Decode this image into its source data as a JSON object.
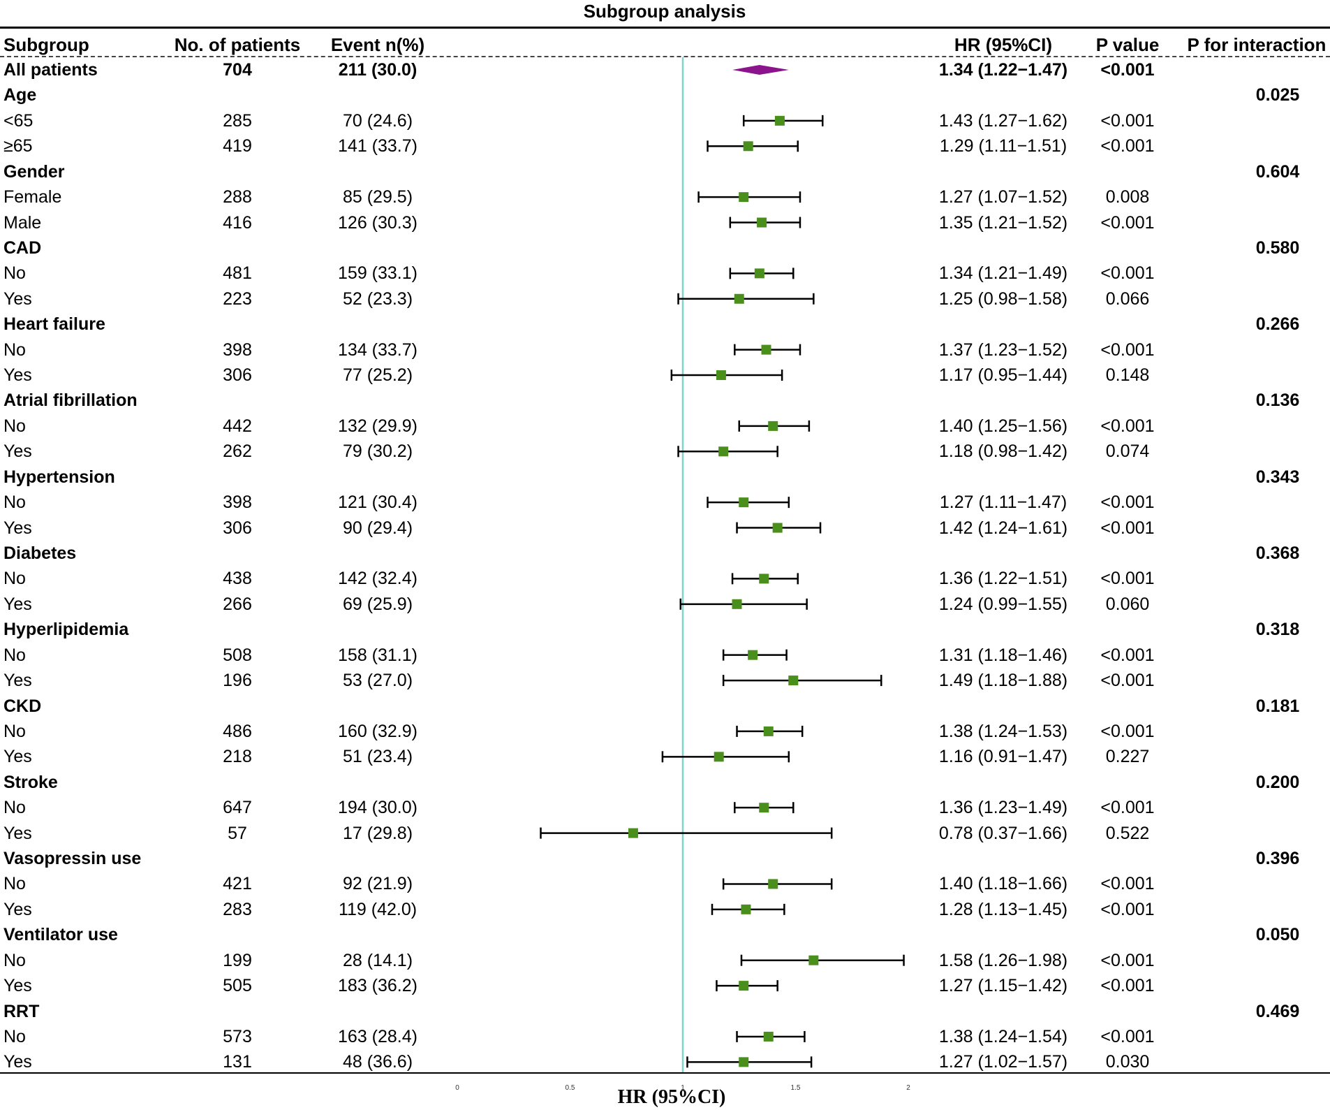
{
  "title": "Subgroup analysis",
  "header": {
    "subgroup": "Subgroup",
    "patients": "No. of patients",
    "events": "Event n(%)",
    "hr": "HR (95%CI)",
    "pvalue": "P value",
    "pinteraction": "P for interaction"
  },
  "rows": [
    {
      "kind": "overall",
      "label": "All patients",
      "n": "704",
      "event": "211 (30.0)",
      "hr_text": "1.34 (1.22−1.47)",
      "p": "<0.001",
      "hr": 1.34,
      "lo": 1.22,
      "hi": 1.47
    },
    {
      "kind": "group",
      "label": "Age",
      "pint": "0.025"
    },
    {
      "kind": "sub",
      "label": "<65",
      "n": "285",
      "event": "70 (24.6)",
      "hr_text": "1.43 (1.27−1.62)",
      "p": "<0.001",
      "hr": 1.43,
      "lo": 1.27,
      "hi": 1.62
    },
    {
      "kind": "sub",
      "label": "≥65",
      "n": "419",
      "event": "141 (33.7)",
      "hr_text": "1.29 (1.11−1.51)",
      "p": "<0.001",
      "hr": 1.29,
      "lo": 1.11,
      "hi": 1.51
    },
    {
      "kind": "group",
      "label": "Gender",
      "pint": "0.604"
    },
    {
      "kind": "sub",
      "label": "Female",
      "n": "288",
      "event": "85 (29.5)",
      "hr_text": "1.27 (1.07−1.52)",
      "p": "0.008",
      "hr": 1.27,
      "lo": 1.07,
      "hi": 1.52
    },
    {
      "kind": "sub",
      "label": "Male",
      "n": "416",
      "event": "126 (30.3)",
      "hr_text": "1.35 (1.21−1.52)",
      "p": "<0.001",
      "hr": 1.35,
      "lo": 1.21,
      "hi": 1.52
    },
    {
      "kind": "group",
      "label": "CAD",
      "pint": "0.580"
    },
    {
      "kind": "sub",
      "label": "No",
      "n": "481",
      "event": "159 (33.1)",
      "hr_text": "1.34 (1.21−1.49)",
      "p": "<0.001",
      "hr": 1.34,
      "lo": 1.21,
      "hi": 1.49
    },
    {
      "kind": "sub",
      "label": "Yes",
      "n": "223",
      "event": "52 (23.3)",
      "hr_text": "1.25 (0.98−1.58)",
      "p": "0.066",
      "hr": 1.25,
      "lo": 0.98,
      "hi": 1.58
    },
    {
      "kind": "group",
      "label": "Heart failure",
      "pint": "0.266"
    },
    {
      "kind": "sub",
      "label": "No",
      "n": "398",
      "event": "134 (33.7)",
      "hr_text": "1.37 (1.23−1.52)",
      "p": "<0.001",
      "hr": 1.37,
      "lo": 1.23,
      "hi": 1.52
    },
    {
      "kind": "sub",
      "label": "Yes",
      "n": "306",
      "event": "77 (25.2)",
      "hr_text": "1.17 (0.95−1.44)",
      "p": "0.148",
      "hr": 1.17,
      "lo": 0.95,
      "hi": 1.44
    },
    {
      "kind": "group",
      "label": "Atrial fibrillation",
      "pint": "0.136"
    },
    {
      "kind": "sub",
      "label": "No",
      "n": "442",
      "event": "132 (29.9)",
      "hr_text": "1.40 (1.25−1.56)",
      "p": "<0.001",
      "hr": 1.4,
      "lo": 1.25,
      "hi": 1.56
    },
    {
      "kind": "sub",
      "label": "Yes",
      "n": "262",
      "event": "79 (30.2)",
      "hr_text": "1.18 (0.98−1.42)",
      "p": "0.074",
      "hr": 1.18,
      "lo": 0.98,
      "hi": 1.42
    },
    {
      "kind": "group",
      "label": "Hypertension",
      "pint": "0.343"
    },
    {
      "kind": "sub",
      "label": "No",
      "n": "398",
      "event": "121 (30.4)",
      "hr_text": "1.27 (1.11−1.47)",
      "p": "<0.001",
      "hr": 1.27,
      "lo": 1.11,
      "hi": 1.47
    },
    {
      "kind": "sub",
      "label": "Yes",
      "n": "306",
      "event": "90 (29.4)",
      "hr_text": "1.42 (1.24−1.61)",
      "p": "<0.001",
      "hr": 1.42,
      "lo": 1.24,
      "hi": 1.61
    },
    {
      "kind": "group",
      "label": "Diabetes",
      "pint": "0.368"
    },
    {
      "kind": "sub",
      "label": "No",
      "n": "438",
      "event": "142 (32.4)",
      "hr_text": "1.36 (1.22−1.51)",
      "p": "<0.001",
      "hr": 1.36,
      "lo": 1.22,
      "hi": 1.51
    },
    {
      "kind": "sub",
      "label": "Yes",
      "n": "266",
      "event": "69 (25.9)",
      "hr_text": "1.24 (0.99−1.55)",
      "p": "0.060",
      "hr": 1.24,
      "lo": 0.99,
      "hi": 1.55
    },
    {
      "kind": "group",
      "label": "Hyperlipidemia",
      "pint": "0.318"
    },
    {
      "kind": "sub",
      "label": "No",
      "n": "508",
      "event": "158 (31.1)",
      "hr_text": "1.31 (1.18−1.46)",
      "p": "<0.001",
      "hr": 1.31,
      "lo": 1.18,
      "hi": 1.46
    },
    {
      "kind": "sub",
      "label": "Yes",
      "n": "196",
      "event": "53 (27.0)",
      "hr_text": "1.49 (1.18−1.88)",
      "p": "<0.001",
      "hr": 1.49,
      "lo": 1.18,
      "hi": 1.88
    },
    {
      "kind": "group",
      "label": "CKD",
      "pint": "0.181"
    },
    {
      "kind": "sub",
      "label": "No",
      "n": "486",
      "event": "160 (32.9)",
      "hr_text": "1.38 (1.24−1.53)",
      "p": "<0.001",
      "hr": 1.38,
      "lo": 1.24,
      "hi": 1.53
    },
    {
      "kind": "sub",
      "label": "Yes",
      "n": "218",
      "event": "51 (23.4)",
      "hr_text": "1.16 (0.91−1.47)",
      "p": "0.227",
      "hr": 1.16,
      "lo": 0.91,
      "hi": 1.47
    },
    {
      "kind": "group",
      "label": "Stroke",
      "pint": "0.200"
    },
    {
      "kind": "sub",
      "label": "No",
      "n": "647",
      "event": "194 (30.0)",
      "hr_text": "1.36 (1.23−1.49)",
      "p": "<0.001",
      "hr": 1.36,
      "lo": 1.23,
      "hi": 1.49
    },
    {
      "kind": "sub",
      "label": "Yes",
      "n": "57",
      "event": "17 (29.8)",
      "hr_text": "0.78 (0.37−1.66)",
      "p": "0.522",
      "hr": 0.78,
      "lo": 0.37,
      "hi": 1.66
    },
    {
      "kind": "group",
      "label": "Vasopressin use",
      "pint": "0.396"
    },
    {
      "kind": "sub",
      "label": "No",
      "n": "421",
      "event": "92 (21.9)",
      "hr_text": "1.40 (1.18−1.66)",
      "p": "<0.001",
      "hr": 1.4,
      "lo": 1.18,
      "hi": 1.66
    },
    {
      "kind": "sub",
      "label": "Yes",
      "n": "283",
      "event": "119 (42.0)",
      "hr_text": "1.28 (1.13−1.45)",
      "p": "<0.001",
      "hr": 1.28,
      "lo": 1.13,
      "hi": 1.45
    },
    {
      "kind": "group",
      "label": "Ventilator use",
      "pint": "0.050"
    },
    {
      "kind": "sub",
      "label": "No",
      "n": "199",
      "event": "28 (14.1)",
      "hr_text": "1.58 (1.26−1.98)",
      "p": "<0.001",
      "hr": 1.58,
      "lo": 1.26,
      "hi": 1.98
    },
    {
      "kind": "sub",
      "label": "Yes",
      "n": "505",
      "event": "183 (36.2)",
      "hr_text": "1.27 (1.15−1.42)",
      "p": "<0.001",
      "hr": 1.27,
      "lo": 1.15,
      "hi": 1.42
    },
    {
      "kind": "group",
      "label": "RRT",
      "pint": "0.469"
    },
    {
      "kind": "sub",
      "label": "No",
      "n": "573",
      "event": "163 (28.4)",
      "hr_text": "1.38 (1.24−1.54)",
      "p": "<0.001",
      "hr": 1.38,
      "lo": 1.24,
      "hi": 1.54
    },
    {
      "kind": "sub",
      "label": "Yes",
      "n": "131",
      "event": "48 (36.6)",
      "hr_text": "1.27 (1.02−1.57)",
      "p": "0.030",
      "hr": 1.27,
      "lo": 1.02,
      "hi": 1.57
    }
  ],
  "chart_data": {
    "type": "forest",
    "title": "Subgroup analysis",
    "xlabel": "HR (95%CI)",
    "xlim": [
      0,
      2
    ],
    "xticks": [
      "0",
      "0.5",
      "1",
      "1.5",
      "2"
    ],
    "reference_line": 1,
    "colors": {
      "point": "#4a8f1c",
      "diamond": "#8b138b",
      "reference": "#7fd3c8",
      "ci": "#000000"
    }
  }
}
